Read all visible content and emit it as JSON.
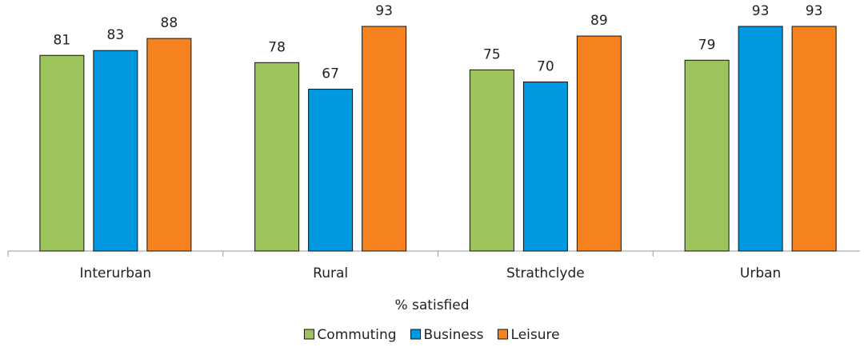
{
  "chart_data": {
    "type": "bar",
    "categories": [
      "Interurban",
      "Rural",
      "Strathclyde",
      "Urban"
    ],
    "x_label": "% satisfied",
    "series": [
      {
        "name": "Commuting",
        "color": "#9dc35d",
        "values": [
          81,
          78,
          75,
          79
        ]
      },
      {
        "name": "Business",
        "color": "#0098df",
        "values": [
          83,
          67,
          70,
          93
        ]
      },
      {
        "name": "Leisure",
        "color": "#f5821f",
        "values": [
          88,
          93,
          89,
          93
        ]
      }
    ],
    "legend": "bottom"
  }
}
